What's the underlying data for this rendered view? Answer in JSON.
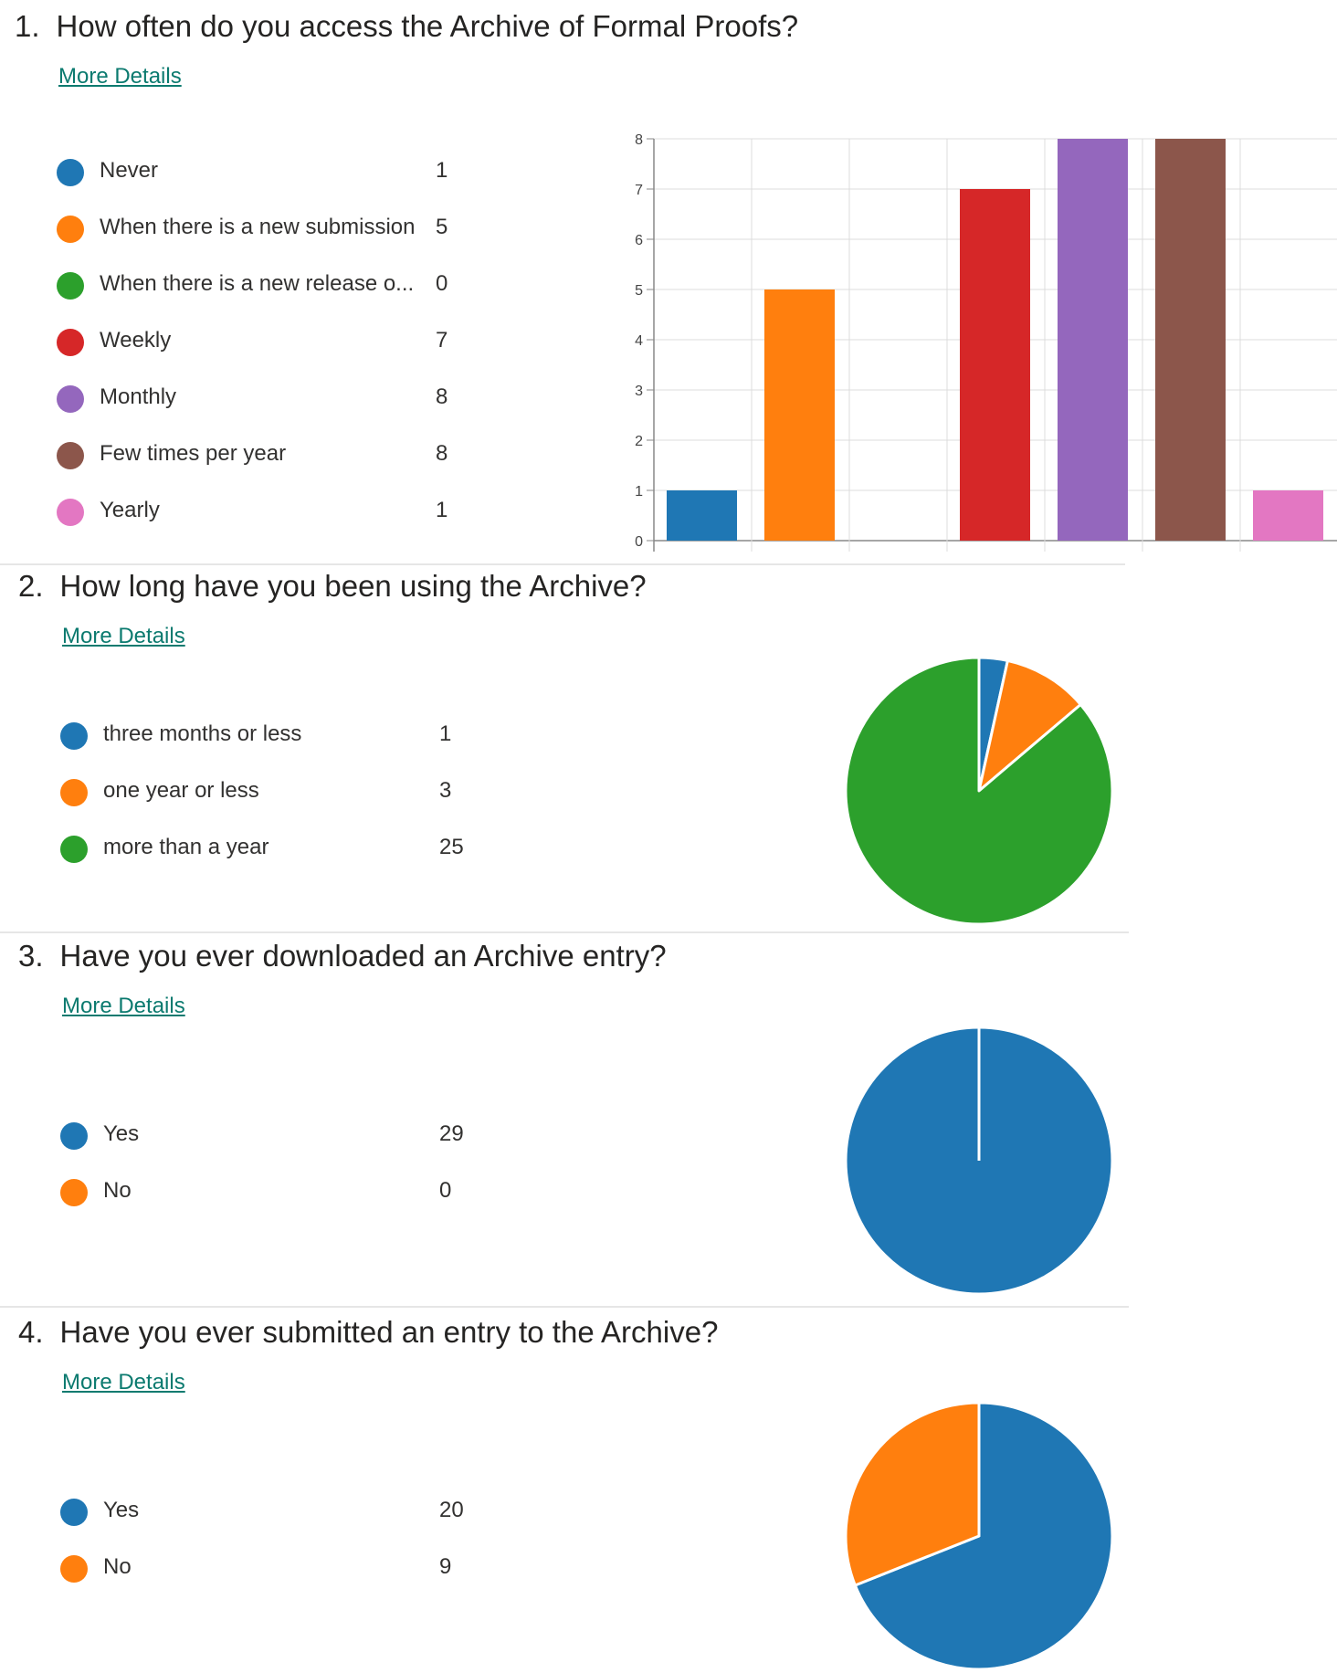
{
  "colors": {
    "blue": "#1f77b4",
    "orange": "#ff7f0e",
    "green": "#2ca02c",
    "red": "#d62728",
    "purple": "#9467bd",
    "brown": "#8c564b",
    "pink": "#e377c2"
  },
  "questions": [
    {
      "number": "1.",
      "title": "How often do you access the Archive of Formal Proofs?",
      "more_details": "More Details",
      "legend": [
        {
          "label": "Never",
          "count": "1",
          "color": "#1f77b4"
        },
        {
          "label": "When there is a new submission",
          "count": "5",
          "color": "#ff7f0e"
        },
        {
          "label": "When there is a new release o...",
          "count": "0",
          "color": "#2ca02c"
        },
        {
          "label": "Weekly",
          "count": "7",
          "color": "#d62728"
        },
        {
          "label": "Monthly",
          "count": "8",
          "color": "#9467bd"
        },
        {
          "label": "Few times per year",
          "count": "8",
          "color": "#8c564b"
        },
        {
          "label": "Yearly",
          "count": "1",
          "color": "#e377c2"
        }
      ]
    },
    {
      "number": "2.",
      "title": "How long have you been using the Archive?",
      "more_details": "More Details",
      "legend": [
        {
          "label": "three months or less",
          "count": "1",
          "color": "#1f77b4"
        },
        {
          "label": "one year or less",
          "count": "3",
          "color": "#ff7f0e"
        },
        {
          "label": "more than a year",
          "count": "25",
          "color": "#2ca02c"
        }
      ]
    },
    {
      "number": "3.",
      "title": "Have you ever downloaded an Archive entry?",
      "more_details": "More Details",
      "legend": [
        {
          "label": "Yes",
          "count": "29",
          "color": "#1f77b4"
        },
        {
          "label": "No",
          "count": "0",
          "color": "#ff7f0e"
        }
      ]
    },
    {
      "number": "4.",
      "title": "Have you ever submitted an entry to the Archive?",
      "more_details": "More Details",
      "legend": [
        {
          "label": "Yes",
          "count": "20",
          "color": "#1f77b4"
        },
        {
          "label": "No",
          "count": "9",
          "color": "#ff7f0e"
        }
      ]
    }
  ],
  "chart_data": [
    {
      "type": "bar",
      "title": "How often do you access the Archive of Formal Proofs?",
      "categories": [
        "Never",
        "When there is a new submission",
        "When there is a new release o...",
        "Weekly",
        "Monthly",
        "Few times per year",
        "Yearly"
      ],
      "values": [
        1,
        5,
        0,
        7,
        8,
        8,
        1
      ],
      "colors": [
        "#1f77b4",
        "#ff7f0e",
        "#2ca02c",
        "#d62728",
        "#9467bd",
        "#8c564b",
        "#e377c2"
      ],
      "ylim": [
        0,
        8
      ],
      "yticks": [
        0,
        1,
        2,
        3,
        4,
        5,
        6,
        7,
        8
      ],
      "grid": true,
      "xlabel": "",
      "ylabel": ""
    },
    {
      "type": "pie",
      "title": "How long have you been using the Archive?",
      "labels": [
        "three months or less",
        "one year or less",
        "more than a year"
      ],
      "values": [
        1,
        3,
        25
      ],
      "colors": [
        "#1f77b4",
        "#ff7f0e",
        "#2ca02c"
      ]
    },
    {
      "type": "pie",
      "title": "Have you ever downloaded an Archive entry?",
      "labels": [
        "Yes",
        "No"
      ],
      "values": [
        29,
        0
      ],
      "colors": [
        "#1f77b4",
        "#ff7f0e"
      ]
    },
    {
      "type": "pie",
      "title": "Have you ever submitted an entry to the Archive?",
      "labels": [
        "Yes",
        "No"
      ],
      "values": [
        20,
        9
      ],
      "colors": [
        "#1f77b4",
        "#ff7f0e"
      ]
    }
  ]
}
